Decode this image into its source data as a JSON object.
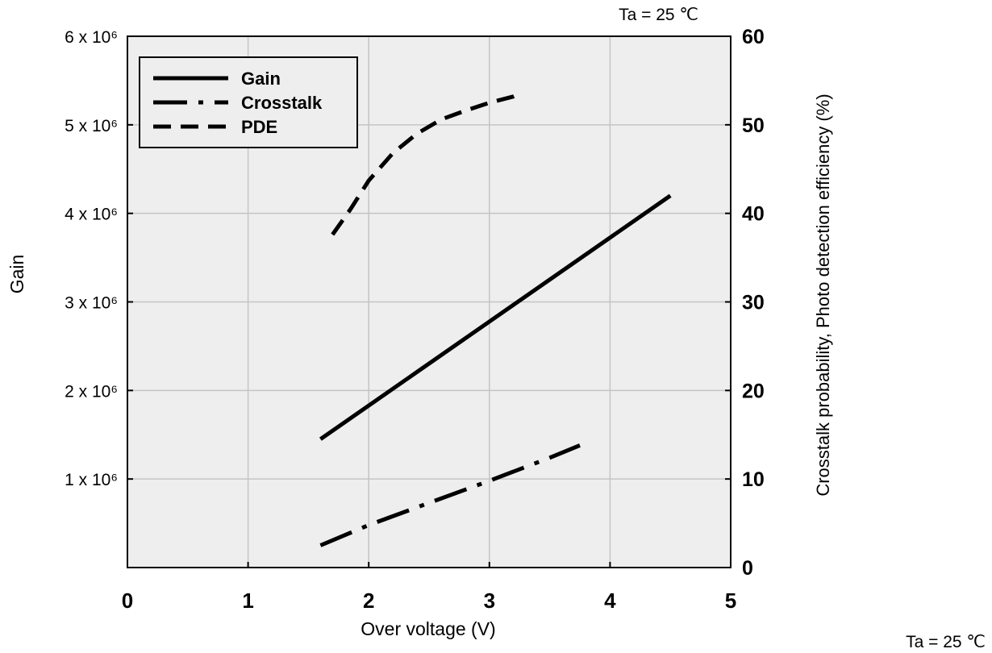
{
  "chart_data": {
    "type": "line",
    "annotation": "Ta = 25 ℃",
    "xlabel": "Over voltage (V)",
    "ylabel_left": "Gain",
    "ylabel_right": "Crosstalk probability, Photo detection efficiency (%)",
    "xlim": [
      0,
      5
    ],
    "ylim_left": [
      0,
      6000000
    ],
    "ylim_right": [
      0,
      60
    ],
    "x_ticks": [
      "0",
      "1",
      "2",
      "3",
      "4",
      "5"
    ],
    "y_left_ticks": [
      {
        "value": 1000000,
        "label": "1 x 10⁶"
      },
      {
        "value": 2000000,
        "label": "2 x 10⁶"
      },
      {
        "value": 3000000,
        "label": "3 x 10⁶"
      },
      {
        "value": 4000000,
        "label": "4 x 10⁶"
      },
      {
        "value": 5000000,
        "label": "5 x 10⁶"
      },
      {
        "value": 6000000,
        "label": "6 x 10⁶"
      }
    ],
    "y_right_ticks": [
      "0",
      "10",
      "20",
      "30",
      "40",
      "50",
      "60"
    ],
    "grid": true,
    "legend_position": "top-left",
    "series": [
      {
        "name": "Gain",
        "axis": "left",
        "style": "solid",
        "x": [
          1.6,
          4.5
        ],
        "y": [
          1450000,
          4200000
        ]
      },
      {
        "name": "Crosstalk",
        "axis": "right",
        "style": "dash-dot",
        "x": [
          1.6,
          2.0,
          2.5,
          3.0,
          3.5,
          3.75
        ],
        "y": [
          2.5,
          4.8,
          7.3,
          9.8,
          12.4,
          13.8
        ]
      },
      {
        "name": "PDE",
        "axis": "right",
        "style": "dashed",
        "x": [
          1.7,
          1.85,
          2.0,
          2.2,
          2.4,
          2.6,
          2.8,
          3.0,
          3.2,
          3.25
        ],
        "y": [
          37.6,
          40.5,
          43.7,
          46.8,
          49.0,
          50.6,
          51.6,
          52.5,
          53.2,
          53.5
        ]
      }
    ]
  }
}
